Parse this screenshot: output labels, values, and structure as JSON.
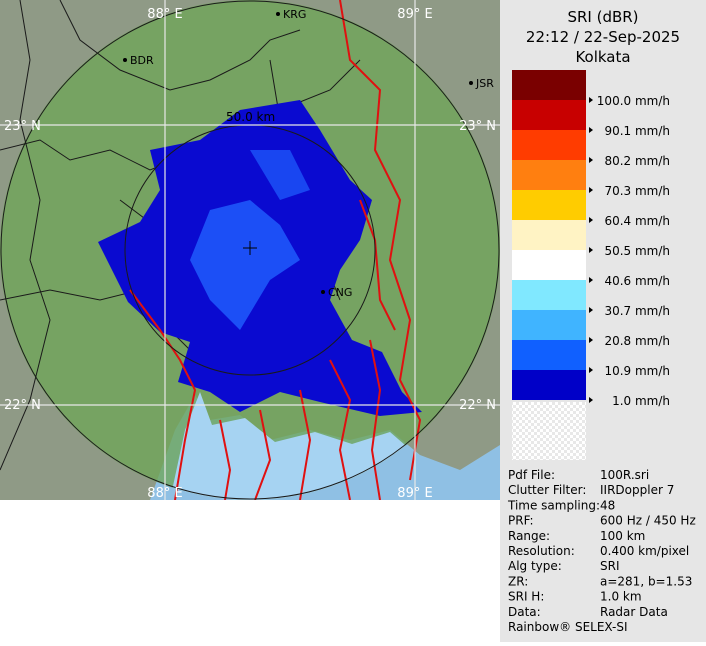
{
  "map": {
    "lon_labels": [
      "88° E",
      "89° E"
    ],
    "lat_labels": [
      "23° N",
      "22° N"
    ],
    "range_label": "50.0 km",
    "cities": [
      "BDR",
      "KRG",
      "JSR",
      "CNG"
    ]
  },
  "legend": {
    "title": "SRI (dBR)",
    "datetime": "22:12 / 22-Sep-2025",
    "site": "Kolkata",
    "levels": [
      "100.0 mm/h",
      "90.1 mm/h",
      "80.2 mm/h",
      "70.3 mm/h",
      "60.4 mm/h",
      "50.5 mm/h",
      "40.6 mm/h",
      "30.7 mm/h",
      "20.8 mm/h",
      "10.9 mm/h",
      "1.0 mm/h"
    ]
  },
  "info": {
    "rows": [
      [
        "Pdf File:",
        "100R.sri"
      ],
      [
        "Clutter Filter:",
        "IIRDoppler 7"
      ],
      [
        "Time sampling:",
        "48"
      ],
      [
        "PRF:",
        "600 Hz / 450 Hz"
      ],
      [
        "Range:",
        "100 km"
      ],
      [
        "Resolution:",
        "0.400 km/pixel"
      ],
      [
        "Alg type:",
        "SRI"
      ],
      [
        "ZR:",
        "a=281, b=1.53"
      ],
      [
        "SRI H:",
        "1.0 km"
      ],
      [
        "Data:",
        "Radar Data"
      ]
    ],
    "footer": "Rainbow® SELEX-SI"
  }
}
